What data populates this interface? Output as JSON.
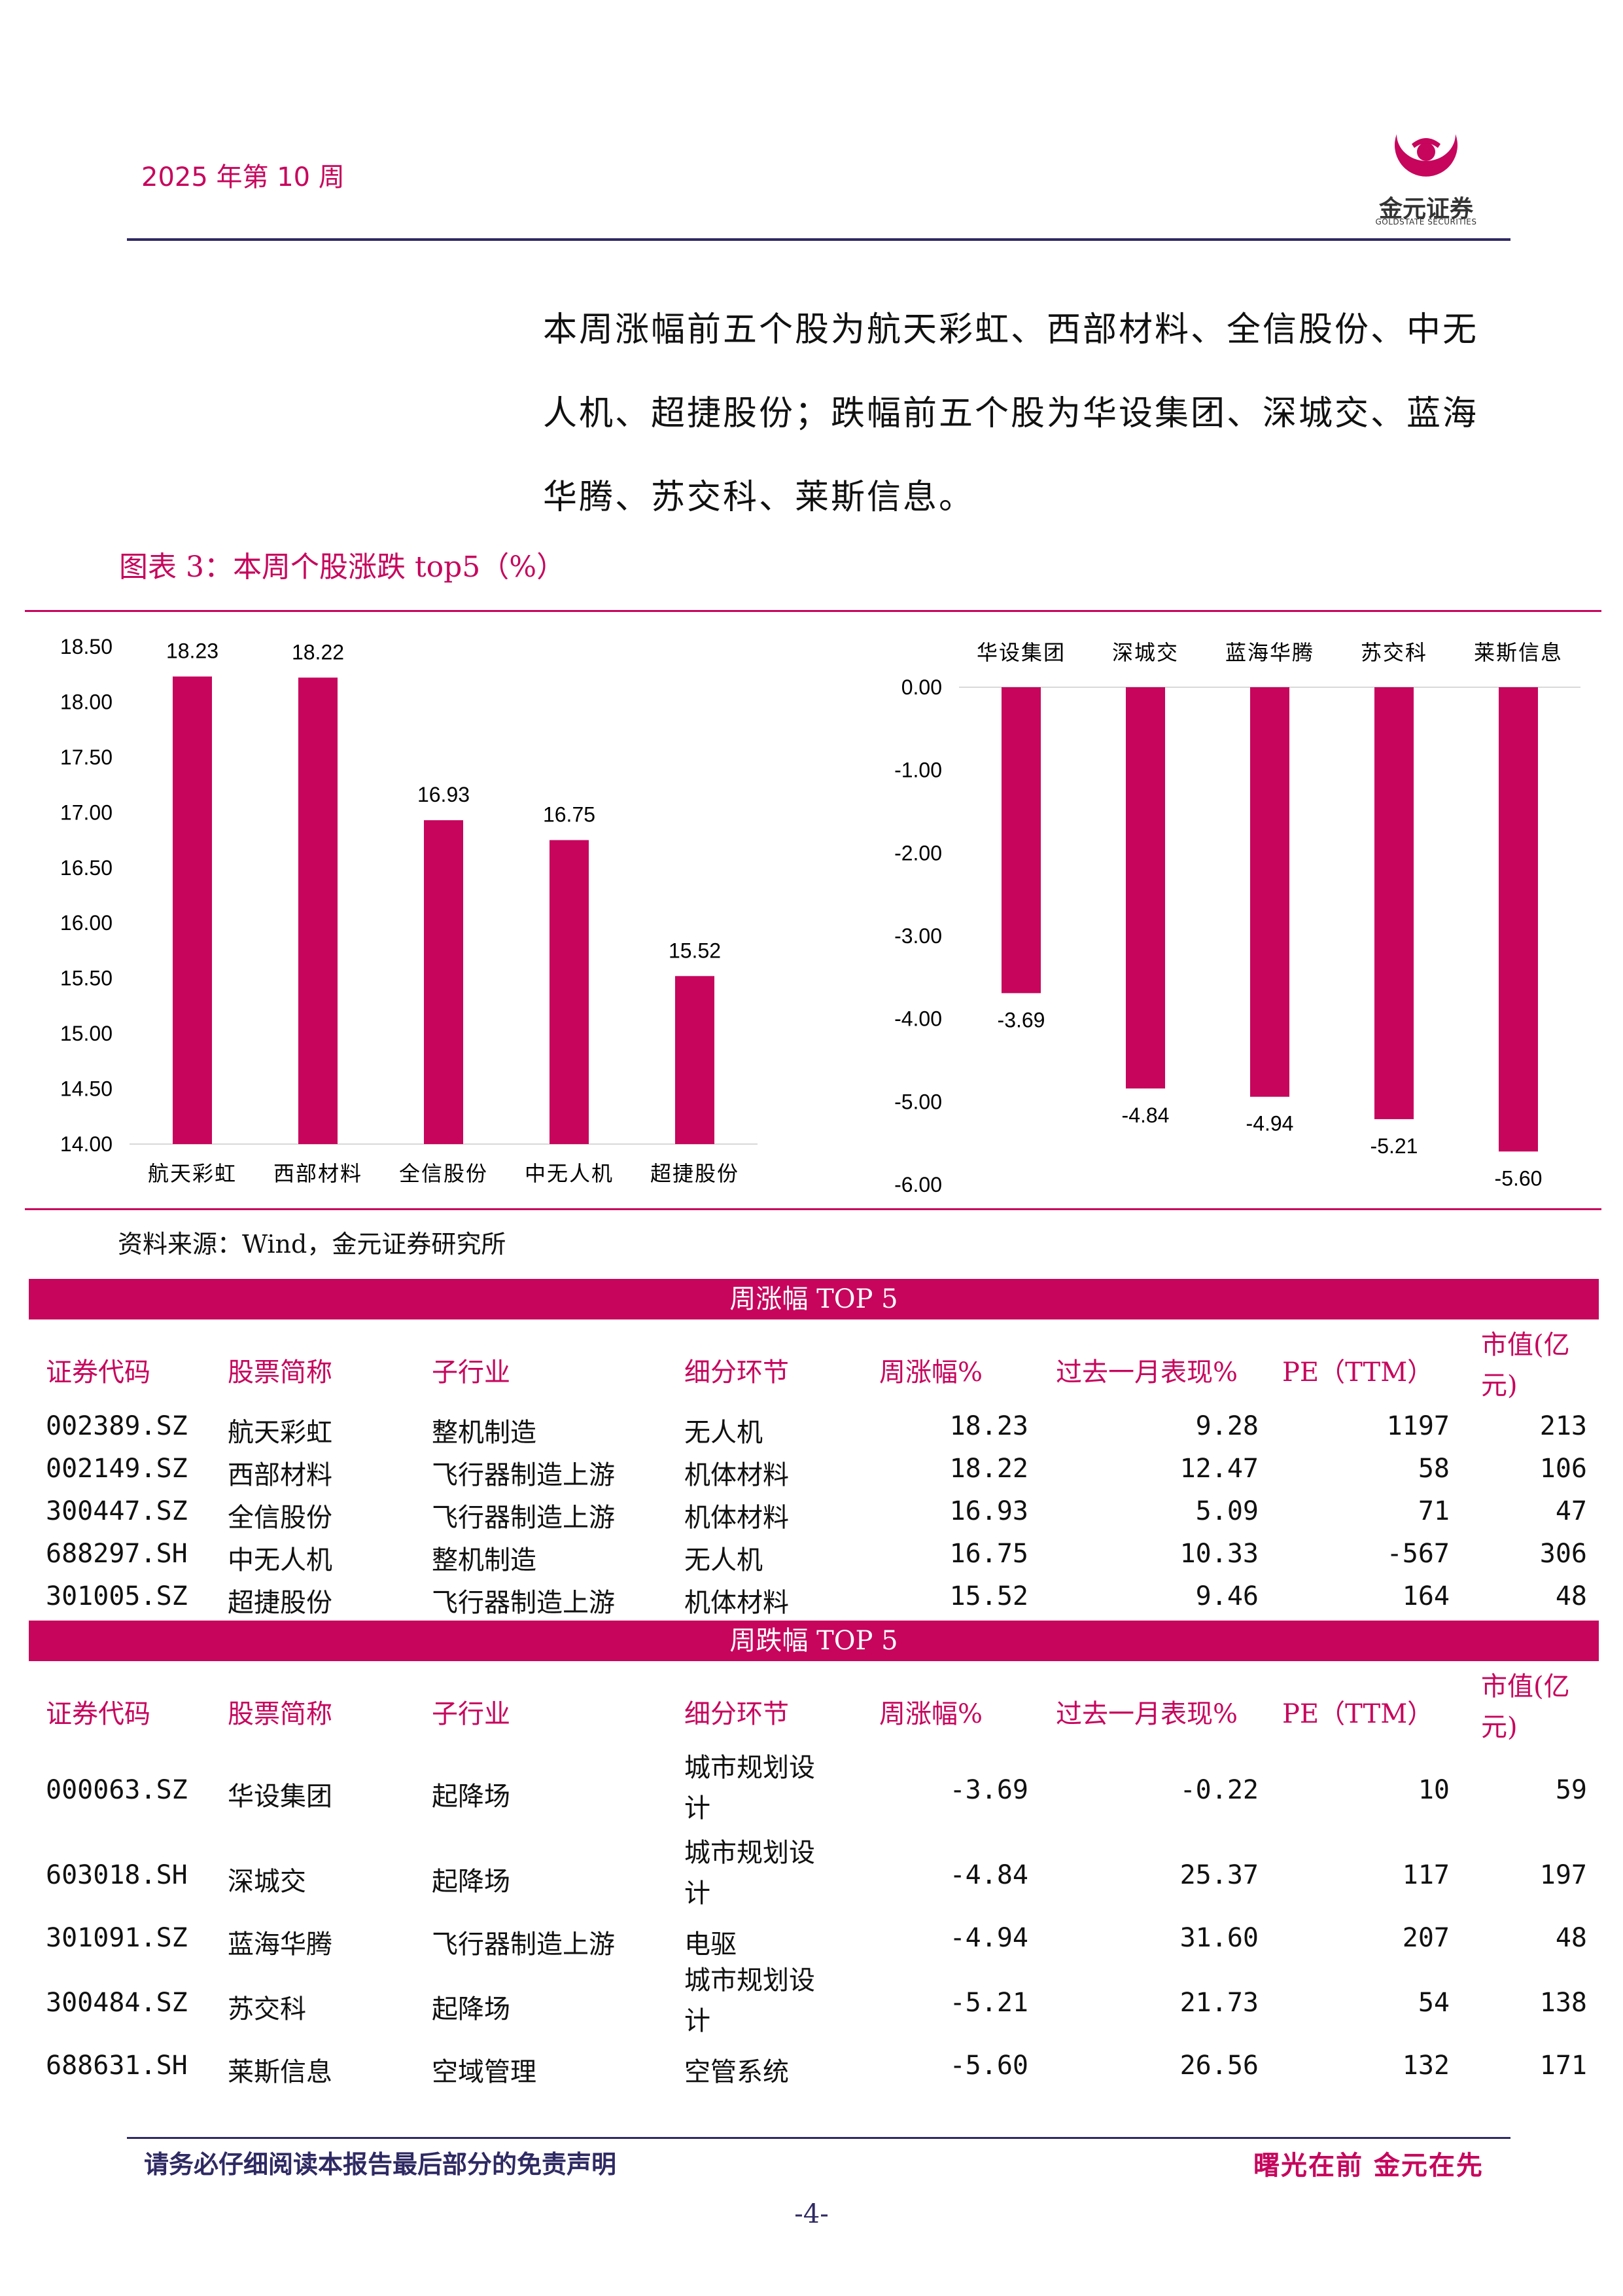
{
  "header": {
    "week_label": "2025 年第 10 周",
    "logo_name": "金元证券",
    "logo_sub": "GOLDSTATE SECURITIES"
  },
  "intro_text": "本周涨幅前五个股为航天彩虹、西部材料、全信股份、中无人机、超捷股份；跌幅前五个股为华设集团、深城交、蓝海华腾、苏交科、莱斯信息。",
  "figure": {
    "title": "图表 3：本周个股涨跌 top5（%）",
    "source": "资料来源：Wind，金元证券研究所"
  },
  "chart_data": [
    {
      "type": "bar",
      "categories": [
        "航天彩虹",
        "西部材料",
        "全信股份",
        "中无人机",
        "超捷股份"
      ],
      "values": [
        18.23,
        18.22,
        16.93,
        16.75,
        15.52
      ],
      "value_labels": [
        "18.23",
        "18.22",
        "16.93",
        "16.75",
        "15.52"
      ],
      "ylim": [
        14.0,
        18.5
      ],
      "yticks": [
        "18.50",
        "18.00",
        "17.50",
        "17.00",
        "16.50",
        "16.00",
        "15.50",
        "15.00",
        "14.50",
        "14.00"
      ],
      "color": "#c7055d",
      "grid": false
    },
    {
      "type": "bar",
      "categories": [
        "华设集团",
        "深城交",
        "蓝海华腾",
        "苏交科",
        "莱斯信息"
      ],
      "values": [
        -3.69,
        -4.84,
        -4.94,
        -5.21,
        -5.6
      ],
      "value_labels": [
        "-3.69",
        "-4.84",
        "-4.94",
        "-5.21",
        "-5.60"
      ],
      "ylim": [
        -6.0,
        0.0
      ],
      "yticks": [
        "0.00",
        "-1.00",
        "-2.00",
        "-3.00",
        "-4.00",
        "-5.00",
        "-6.00"
      ],
      "category_position": "top",
      "color": "#c7055d",
      "grid": false
    }
  ],
  "tables": {
    "headers": [
      "证券代码",
      "股票简称",
      "子行业",
      "细分环节",
      "周涨幅%",
      "过去一月表现%",
      "PE（TTM）",
      "市值(亿",
      "元)"
    ],
    "gain": {
      "title": "周涨幅 TOP 5",
      "rows": [
        [
          "002389.SZ",
          "航天彩虹",
          "整机制造",
          "无人机",
          "",
          "18.23",
          "9.28",
          "1197",
          "213"
        ],
        [
          "002149.SZ",
          "西部材料",
          "飞行器制造上游",
          "机体材料",
          "",
          "18.22",
          "12.47",
          "58",
          "106"
        ],
        [
          "300447.SZ",
          "全信股份",
          "飞行器制造上游",
          "机体材料",
          "",
          "16.93",
          "5.09",
          "71",
          "47"
        ],
        [
          "688297.SH",
          "中无人机",
          "整机制造",
          "无人机",
          "",
          "16.75",
          "10.33",
          "-567",
          "306"
        ],
        [
          "301005.SZ",
          "超捷股份",
          "飞行器制造上游",
          "机体材料",
          "",
          "15.52",
          "9.46",
          "164",
          "48"
        ]
      ]
    },
    "loss": {
      "title": "周跌幅 TOP 5",
      "rows": [
        [
          "000063.SZ",
          "华设集团",
          "起降场",
          "城市规划设",
          "计",
          "-3.69",
          "-0.22",
          "10",
          "59"
        ],
        [
          "603018.SH",
          "深城交",
          "起降场",
          "城市规划设",
          "计",
          "-4.84",
          "25.37",
          "117",
          "197"
        ],
        [
          "301091.SZ",
          "蓝海华腾",
          "飞行器制造上游",
          "电驱",
          "",
          "-4.94",
          "31.60",
          "207",
          "48"
        ],
        [
          "300484.SZ",
          "苏交科",
          "起降场",
          "城市规划设",
          "计",
          "-5.21",
          "21.73",
          "54",
          "138"
        ],
        [
          "688631.SH",
          "莱斯信息",
          "空域管理",
          "空管系统",
          "",
          "-5.60",
          "26.56",
          "132",
          "171"
        ]
      ]
    }
  },
  "footer": {
    "disclaimer": "请务必仔细阅读本报告最后部分的免责声明",
    "slogan": "曙光在前 金元在先",
    "page": "-4-"
  }
}
